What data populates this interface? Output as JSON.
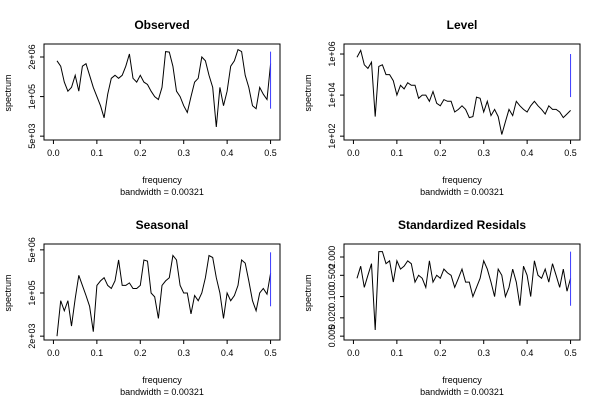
{
  "chart_data": [
    {
      "type": "line",
      "title": "Observed",
      "xlabel": "frequency",
      "sublabel": "bandwidth = 0.00321",
      "ylabel": "spectrum",
      "log_y": true,
      "xlim": [
        0,
        0.5
      ],
      "ylim": [
        5000,
        4000000
      ],
      "x_ticks": [
        0.0,
        0.1,
        0.2,
        0.3,
        0.4,
        0.5
      ],
      "x_tick_labels": [
        "0.0",
        "0.1",
        "0.2",
        "0.3",
        "0.4",
        "0.5"
      ],
      "y_ticks": [
        5000,
        100000,
        2000000
      ],
      "y_tick_labels": [
        "5e+03",
        "1e+05",
        "2e+06"
      ],
      "bandwidth_marker": {
        "x": 0.5,
        "y_low": 40000,
        "y_high": 3000000,
        "color": "#3a3aff"
      },
      "series": [
        {
          "x": [
            0.0083,
            0.0167,
            0.025,
            0.0333,
            0.0417,
            0.05,
            0.0583,
            0.0667,
            0.075,
            0.0833,
            0.0917,
            0.1,
            0.1083,
            0.1167,
            0.125,
            0.1333,
            0.1417,
            0.15,
            0.1583,
            0.1667,
            0.175,
            0.1833,
            0.1917,
            0.2,
            0.2083,
            0.2167,
            0.225,
            0.2333,
            0.2417,
            0.25,
            0.2583,
            0.2667,
            0.275,
            0.2833,
            0.2917,
            0.3,
            0.3083,
            0.3167,
            0.325,
            0.3333,
            0.3417,
            0.35,
            0.3583,
            0.3667,
            0.375,
            0.3833,
            0.3917,
            0.4,
            0.4083,
            0.4167,
            0.425,
            0.4333,
            0.4417,
            0.45,
            0.4583,
            0.4667,
            0.475,
            0.4833,
            0.4917,
            0.5
          ],
          "values": [
            1500000,
            1000000,
            300000,
            150000,
            200000,
            500000,
            150000,
            1000000,
            1200000,
            500000,
            200000,
            100000,
            50000,
            20000,
            120000,
            400000,
            500000,
            400000,
            500000,
            1000000,
            2500000,
            400000,
            300000,
            500000,
            300000,
            250000,
            150000,
            100000,
            80000,
            200000,
            3000000,
            2900000,
            1000000,
            150000,
            100000,
            50000,
            30000,
            100000,
            300000,
            400000,
            2000000,
            1500000,
            500000,
            200000,
            10000,
            200000,
            50000,
            150000,
            1000000,
            1500000,
            3500000,
            3000000,
            500000,
            200000,
            50000,
            40000,
            200000,
            120000,
            80000,
            1200000
          ]
        }
      ]
    },
    {
      "type": "line",
      "title": "Level",
      "xlabel": "frequency",
      "sublabel": "bandwidth = 0.00321",
      "ylabel": "spectrum",
      "log_y": true,
      "xlim": [
        0,
        0.5
      ],
      "ylim": [
        100,
        2000000
      ],
      "x_ticks": [
        0.0,
        0.1,
        0.2,
        0.3,
        0.4,
        0.5
      ],
      "x_tick_labels": [
        "0.0",
        "0.1",
        "0.2",
        "0.3",
        "0.4",
        "0.5"
      ],
      "y_ticks": [
        100,
        10000,
        1000000
      ],
      "y_tick_labels": [
        "1e+02",
        "1e+04",
        "1e+06"
      ],
      "bandwidth_marker": {
        "x": 0.5,
        "y_low": 8000,
        "y_high": 1000000,
        "color": "#3a3aff"
      },
      "series": [
        {
          "x": [
            0.0083,
            0.0167,
            0.025,
            0.0333,
            0.0417,
            0.05,
            0.0583,
            0.0667,
            0.075,
            0.0833,
            0.0917,
            0.1,
            0.1083,
            0.1167,
            0.125,
            0.1333,
            0.1417,
            0.15,
            0.1583,
            0.1667,
            0.175,
            0.1833,
            0.1917,
            0.2,
            0.2083,
            0.2167,
            0.225,
            0.2333,
            0.2417,
            0.25,
            0.2583,
            0.2667,
            0.275,
            0.2833,
            0.2917,
            0.3,
            0.3083,
            0.3167,
            0.325,
            0.3333,
            0.3417,
            0.35,
            0.3583,
            0.3667,
            0.375,
            0.3833,
            0.3917,
            0.4,
            0.4083,
            0.4167,
            0.425,
            0.4333,
            0.4417,
            0.45,
            0.4583,
            0.4667,
            0.475,
            0.4833,
            0.4917,
            0.5
          ],
          "values": [
            700000,
            1500000,
            300000,
            200000,
            400000,
            900,
            250000,
            300000,
            100000,
            100000,
            50000,
            10000,
            30000,
            20000,
            40000,
            30000,
            30000,
            7000,
            10000,
            10000,
            5000,
            15000,
            4000,
            3000,
            6000,
            5000,
            5000,
            1500,
            2000,
            3000,
            2000,
            800,
            900,
            8000,
            7000,
            1500,
            5000,
            1000,
            2000,
            900,
            120,
            500,
            2000,
            1000,
            5000,
            3000,
            2000,
            1500,
            3000,
            5000,
            3000,
            2000,
            1200,
            3000,
            2000,
            2000,
            1500,
            800,
            1200,
            1800
          ]
        }
      ]
    },
    {
      "type": "line",
      "title": "Seasonal",
      "xlabel": "frequency",
      "sublabel": "bandwidth = 0.00321",
      "ylabel": "spectrum",
      "log_y": true,
      "xlim": [
        0,
        0.5
      ],
      "ylim": [
        2000,
        6000000
      ],
      "x_ticks": [
        0.0,
        0.1,
        0.2,
        0.3,
        0.4,
        0.5
      ],
      "x_tick_labels": [
        "0.0",
        "0.1",
        "0.2",
        "0.3",
        "0.4",
        "0.5"
      ],
      "y_ticks": [
        2000,
        100000,
        5000000
      ],
      "y_tick_labels": [
        "2e+03",
        "1e+05",
        "5e+06"
      ],
      "bandwidth_marker": {
        "x": 0.5,
        "y_low": 30000,
        "y_high": 4000000,
        "color": "#3a3aff"
      },
      "series": [
        {
          "x": [
            0.0083,
            0.0167,
            0.025,
            0.0333,
            0.0417,
            0.05,
            0.0583,
            0.0667,
            0.075,
            0.0833,
            0.0917,
            0.1,
            0.1083,
            0.1167,
            0.125,
            0.1333,
            0.1417,
            0.15,
            0.1583,
            0.1667,
            0.175,
            0.1833,
            0.1917,
            0.2,
            0.2083,
            0.2167,
            0.225,
            0.2333,
            0.2417,
            0.25,
            0.2583,
            0.2667,
            0.275,
            0.2833,
            0.2917,
            0.3,
            0.3083,
            0.3167,
            0.325,
            0.3333,
            0.3417,
            0.35,
            0.3583,
            0.3667,
            0.375,
            0.3833,
            0.3917,
            0.4,
            0.4083,
            0.4167,
            0.425,
            0.4333,
            0.4417,
            0.45,
            0.4583,
            0.4667,
            0.475,
            0.4833,
            0.4917,
            0.5
          ],
          "values": [
            2000,
            50000,
            20000,
            50000,
            5000,
            60000,
            500000,
            200000,
            80000,
            30000,
            3000,
            200000,
            300000,
            400000,
            200000,
            150000,
            300000,
            2000000,
            200000,
            200000,
            250000,
            150000,
            150000,
            200000,
            2000000,
            1800000,
            100000,
            70000,
            10000,
            200000,
            300000,
            400000,
            3000000,
            2000000,
            200000,
            100000,
            100000,
            15000,
            80000,
            50000,
            100000,
            400000,
            3000000,
            2500000,
            400000,
            100000,
            10000,
            100000,
            50000,
            80000,
            200000,
            2000000,
            1500000,
            300000,
            50000,
            20000,
            100000,
            150000,
            90000,
            600000
          ]
        }
      ]
    },
    {
      "type": "line",
      "title": "Standardized Residals",
      "xlabel": "frequency",
      "sublabel": "bandwidth = 0.00321",
      "ylabel": "spectrum",
      "log_y": true,
      "xlim": [
        0,
        0.5
      ],
      "ylim": [
        0.005,
        4
      ],
      "x_ticks": [
        0.0,
        0.1,
        0.2,
        0.3,
        0.4,
        0.5
      ],
      "x_tick_labels": [
        "0.0",
        "0.1",
        "0.2",
        "0.3",
        "0.4",
        "0.5"
      ],
      "y_ticks": [
        0.005,
        0.02,
        0.1,
        0.5,
        2
      ],
      "y_tick_labels": [
        "0.005",
        "0.020",
        "0.100",
        "0.500",
        "2.000"
      ],
      "bandwidth_marker": {
        "x": 0.5,
        "y_low": 0.05,
        "y_high": 3,
        "color": "#3a3aff"
      },
      "series": [
        {
          "x": [
            0.0083,
            0.0167,
            0.025,
            0.0333,
            0.0417,
            0.05,
            0.0583,
            0.0667,
            0.075,
            0.0833,
            0.0917,
            0.1,
            0.1083,
            0.1167,
            0.125,
            0.1333,
            0.1417,
            0.15,
            0.1583,
            0.1667,
            0.175,
            0.1833,
            0.1917,
            0.2,
            0.2083,
            0.2167,
            0.225,
            0.2333,
            0.2417,
            0.25,
            0.2583,
            0.2667,
            0.275,
            0.2833,
            0.2917,
            0.3,
            0.3083,
            0.3167,
            0.325,
            0.3333,
            0.3417,
            0.35,
            0.3583,
            0.3667,
            0.375,
            0.3833,
            0.3917,
            0.4,
            0.4083,
            0.4167,
            0.425,
            0.4333,
            0.4417,
            0.45,
            0.4583,
            0.4667,
            0.475,
            0.4833,
            0.4917,
            0.5
          ],
          "values": [
            0.4,
            1.0,
            0.2,
            0.5,
            1.2,
            0.008,
            3.0,
            3.0,
            1.2,
            1.5,
            0.3,
            1.5,
            0.8,
            1.0,
            1.5,
            1.2,
            0.3,
            0.5,
            0.4,
            0.2,
            1.5,
            0.3,
            0.5,
            0.4,
            0.8,
            0.6,
            0.5,
            0.2,
            0.4,
            0.8,
            0.3,
            0.3,
            0.1,
            0.2,
            0.4,
            1.5,
            0.8,
            0.3,
            0.1,
            0.8,
            0.5,
            0.1,
            0.2,
            0.8,
            0.3,
            0.05,
            1.0,
            0.5,
            0.1,
            1.5,
            0.5,
            0.4,
            0.8,
            0.3,
            1.2,
            0.5,
            0.2,
            0.8,
            0.15,
            0.4
          ]
        }
      ]
    }
  ]
}
